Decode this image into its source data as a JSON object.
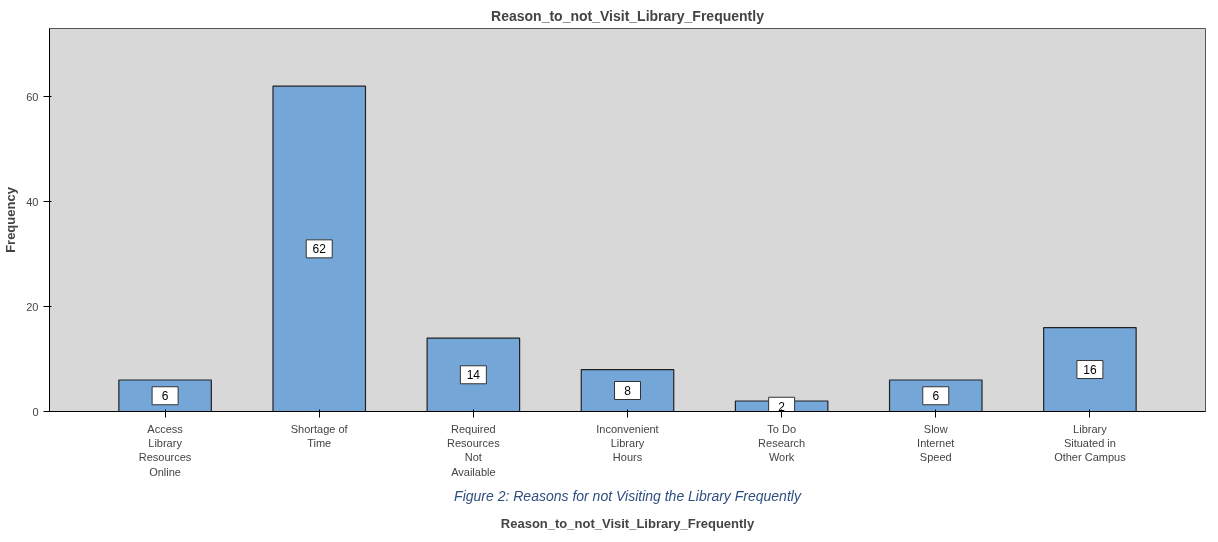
{
  "chart_data": {
    "type": "bar",
    "title": "Reason_to_not_Visit_Library_Frequently",
    "xlabel": "Reason_to_not_Visit_Library_Frequently",
    "ylabel": "Frequency",
    "categories": [
      "Access Library Resources Online",
      "Shortage of Time",
      "Required Resources Not Available",
      "Inconvenient Library Hours",
      "To Do Research Work",
      "Slow Internet Speed",
      "Library Situated in Other Campus"
    ],
    "values": [
      6,
      62,
      14,
      8,
      2,
      6,
      16
    ],
    "color": "#74a7d8",
    "ylim": [
      0,
      73
    ],
    "yticks": [
      0,
      20,
      40,
      60
    ],
    "grid": false,
    "data_labels": true,
    "annotations": [
      "Figure 2: Reasons for not Visiting the Library Frequently"
    ]
  }
}
